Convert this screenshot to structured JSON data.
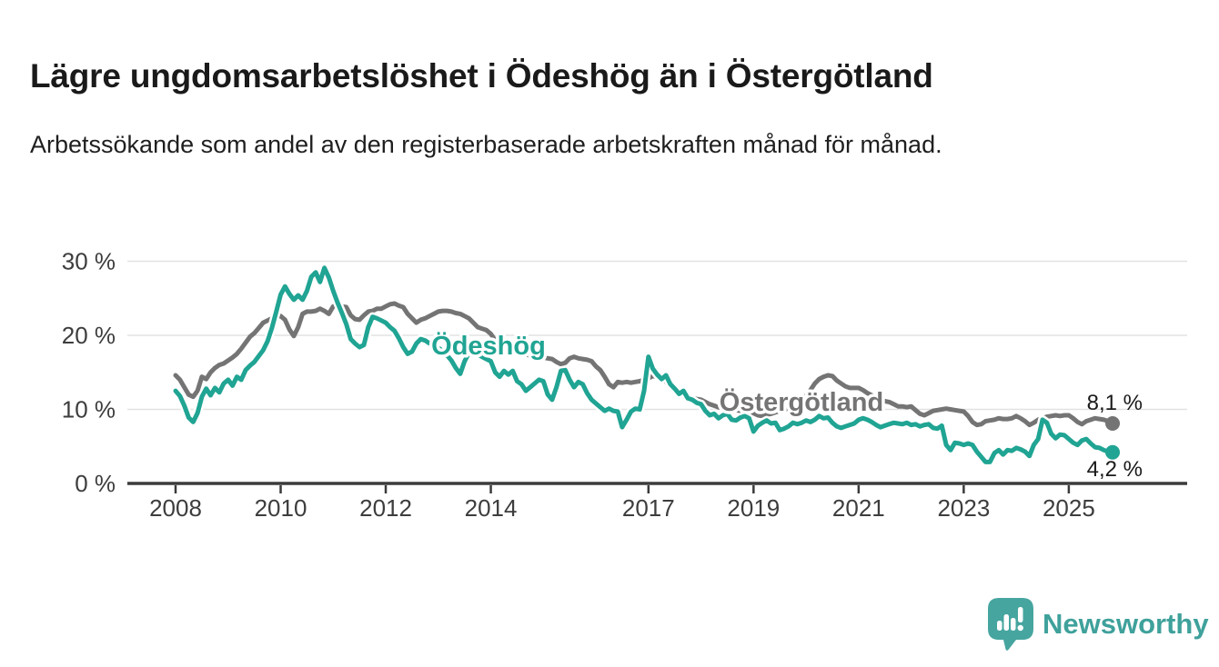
{
  "title": "Lägre ungdomsarbetslöshet i Ödeshög än i Östergötland",
  "subtitle": "Arbetssökande som andel av den registerbaserade arbetskraften månad för månad.",
  "footer": {
    "logo_text": "Newsworthy",
    "logo_icon": "speech-bubble-bar-chart"
  },
  "colors": {
    "odeshog": "#20a493",
    "ostergotland": "#747474",
    "axis_text": "#3d3d3d",
    "axis_line": "#3b3b3b",
    "gridline": "#e2e2e2",
    "value_label": "#1a1a1a",
    "logo_teal": "#46a59f"
  },
  "chart_data": {
    "type": "line",
    "title": "Lägre ungdomsarbetslöshet i Ödeshög än i Östergötland",
    "subtitle": "Arbetssökande som andel av den registerbaserade arbetskraften månad för månad.",
    "x_unit": "month",
    "x_start": "2008-01",
    "x_end": "2025-11",
    "x_tick_years": [
      2008,
      2010,
      2012,
      2014,
      2017,
      2019,
      2021,
      2023,
      2025
    ],
    "y_ticks": [
      {
        "label": "30 %",
        "value": 30
      },
      {
        "label": "20 %",
        "value": 20
      },
      {
        "label": "10 %",
        "value": 10
      },
      {
        "label": "0 %",
        "value": 0
      }
    ],
    "ylim": [
      0,
      32
    ],
    "grid": "horizontal",
    "legend_position": "inline-labels",
    "series": [
      {
        "name": "Östergötland",
        "color": "#747474",
        "end_label": "8,1 %",
        "end_value": 8.1,
        "values": [
          14.6,
          14.0,
          13.0,
          12.0,
          11.7,
          12.5,
          14.4,
          14.1,
          15.0,
          15.6,
          16.0,
          16.2,
          16.6,
          17.0,
          17.5,
          18.2,
          19.0,
          19.8,
          20.3,
          21.0,
          21.7,
          22.0,
          22.3,
          22.5,
          22.6,
          22.1,
          20.8,
          19.9,
          21.1,
          22.9,
          23.2,
          23.2,
          23.3,
          23.6,
          23.3,
          22.9,
          23.9,
          24.2,
          23.9,
          23.8,
          22.7,
          22.2,
          22.1,
          22.7,
          23.2,
          23.3,
          23.6,
          23.6,
          23.9,
          24.2,
          24.3,
          24.0,
          23.8,
          22.9,
          22.3,
          21.7,
          22.1,
          22.3,
          22.6,
          22.9,
          23.2,
          23.3,
          23.3,
          23.2,
          23.0,
          22.9,
          22.6,
          22.3,
          21.7,
          21.1,
          20.9,
          20.7,
          20.2,
          19.3,
          18.7,
          18.3,
          18.0,
          17.8,
          17.6,
          17.8,
          17.5,
          17.2,
          17.1,
          16.9,
          17.0,
          16.9,
          16.8,
          16.4,
          16.1,
          16.3,
          16.9,
          17.1,
          16.9,
          16.8,
          16.7,
          16.5,
          15.8,
          15.3,
          14.4,
          13.4,
          13.0,
          13.7,
          13.6,
          13.7,
          13.6,
          13.7,
          13.8,
          14.0,
          14.2,
          14.5,
          14.4,
          14.0,
          13.8,
          13.0,
          12.4,
          11.8,
          12.1,
          11.8,
          11.6,
          11.4,
          11.3,
          11.0,
          10.7,
          10.5,
          10.3,
          10.2,
          10.1,
          10.0,
          9.9,
          9.8,
          9.7,
          9.6,
          9.5,
          9.2,
          9.1,
          9.3,
          9.4,
          9.6,
          9.8,
          9.9,
          10.1,
          10.3,
          10.6,
          11.0,
          11.8,
          12.6,
          13.5,
          14.1,
          14.4,
          14.6,
          14.5,
          13.9,
          13.5,
          13.1,
          12.9,
          12.9,
          12.9,
          12.6,
          12.2,
          11.9,
          11.6,
          11.3,
          11.1,
          11.0,
          10.7,
          10.4,
          10.4,
          10.3,
          10.4,
          9.9,
          9.4,
          9.2,
          9.5,
          9.8,
          9.9,
          10.0,
          10.1,
          10.0,
          9.9,
          9.8,
          9.7,
          9.1,
          8.3,
          7.9,
          8.0,
          8.4,
          8.5,
          8.6,
          8.8,
          8.7,
          8.7,
          8.8,
          9.1,
          8.8,
          8.4,
          7.9,
          8.2,
          8.6,
          8.8,
          9.0,
          9.1,
          9.2,
          9.1,
          9.2,
          9.2,
          8.8,
          8.3,
          8.0,
          8.4,
          8.6,
          8.8,
          8.7,
          8.6,
          8.4,
          8.1
        ]
      },
      {
        "name": "Ödeshög",
        "color": "#20a493",
        "end_label": "4,2 %",
        "end_value": 4.2,
        "values": [
          12.5,
          11.8,
          10.5,
          8.9,
          8.3,
          9.5,
          11.7,
          12.8,
          11.9,
          12.9,
          12.3,
          13.5,
          14.0,
          13.2,
          14.4,
          14.0,
          15.3,
          15.9,
          16.4,
          17.2,
          18.0,
          19.2,
          21.0,
          23.2,
          25.5,
          26.6,
          25.6,
          24.8,
          25.4,
          24.8,
          26.0,
          27.9,
          28.5,
          27.2,
          29.1,
          27.8,
          26.0,
          24.4,
          23.0,
          21.5,
          19.5,
          18.9,
          18.4,
          18.7,
          21.1,
          22.5,
          22.3,
          22.0,
          21.7,
          21.1,
          20.6,
          19.6,
          18.4,
          17.5,
          17.8,
          18.9,
          19.5,
          19.3,
          18.9,
          18.7,
          18.3,
          17.9,
          17.3,
          16.6,
          15.6,
          14.8,
          16.5,
          17.6,
          17.9,
          17.4,
          17.1,
          16.8,
          16.5,
          15.0,
          14.4,
          15.2,
          14.7,
          15.2,
          13.8,
          13.4,
          12.5,
          13.0,
          13.5,
          14.0,
          13.8,
          12.0,
          11.3,
          13.0,
          15.2,
          15.3,
          14.0,
          13.0,
          13.7,
          13.4,
          12.2,
          11.3,
          10.8,
          10.3,
          9.8,
          10.1,
          9.8,
          9.7,
          7.6,
          8.6,
          9.7,
          10.1,
          10.0,
          12.5,
          17.1,
          15.5,
          14.7,
          14.1,
          14.6,
          13.4,
          12.8,
          12.1,
          12.5,
          11.5,
          11.3,
          10.9,
          10.7,
          9.8,
          9.2,
          9.4,
          8.8,
          9.2,
          9.4,
          8.6,
          8.5,
          8.9,
          9.1,
          8.8,
          7.0,
          7.8,
          8.2,
          8.5,
          8.1,
          8.2,
          7.2,
          7.4,
          7.7,
          8.2,
          8.0,
          8.2,
          8.5,
          8.3,
          8.6,
          9.1,
          8.8,
          8.9,
          8.2,
          7.7,
          7.5,
          7.7,
          7.9,
          8.1,
          8.6,
          8.8,
          8.6,
          8.3,
          7.9,
          7.6,
          7.8,
          8.0,
          8.2,
          8.1,
          8.0,
          8.2,
          7.9,
          8.0,
          7.7,
          7.9,
          8.0,
          7.5,
          7.4,
          7.8,
          5.2,
          4.5,
          5.5,
          5.4,
          5.2,
          5.4,
          5.2,
          4.3,
          3.6,
          2.9,
          2.9,
          4.1,
          4.5,
          3.9,
          4.5,
          4.4,
          4.8,
          4.6,
          4.3,
          3.7,
          5.2,
          6.0,
          8.6,
          8.2,
          6.7,
          6.1,
          6.6,
          6.5,
          6.0,
          5.5,
          5.2,
          5.8,
          6.0,
          5.4,
          4.9,
          4.8,
          4.5,
          4.3,
          4.2
        ]
      }
    ]
  }
}
